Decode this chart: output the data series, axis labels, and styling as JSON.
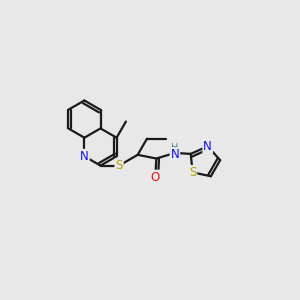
{
  "bg_color": "#e8e8e8",
  "bond_color": "#1a1a1a",
  "lw": 1.6,
  "atom_colors": {
    "N": "#1010ee",
    "S_thioether": "#b8a000",
    "S_thiazole": "#b8a000",
    "O": "#ee1010",
    "H": "#3a8a8a",
    "C": "#1a1a1a"
  },
  "font_size": 8.5,
  "fig_size": [
    3.0,
    3.0
  ],
  "dpi": 100,
  "BL": 0.62
}
